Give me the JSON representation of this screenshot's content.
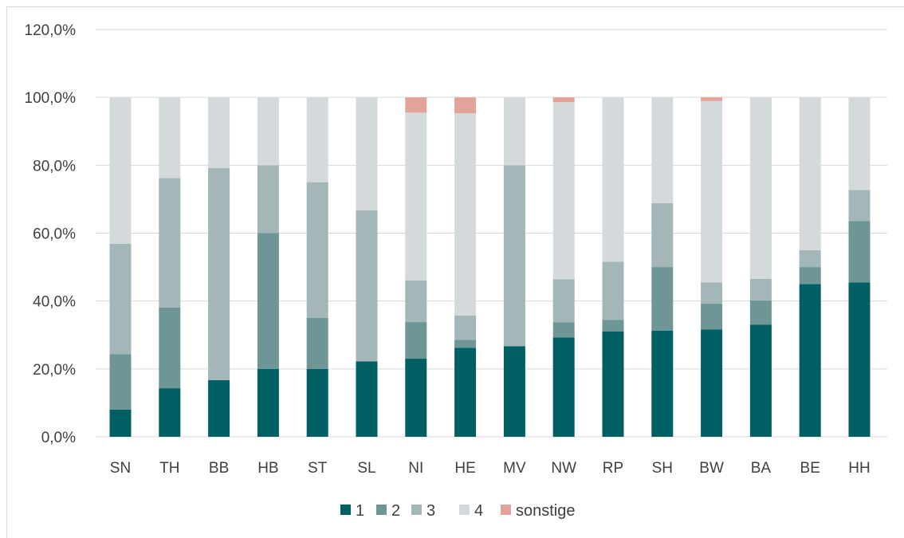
{
  "chart_data": {
    "type": "bar",
    "stacked": true,
    "categories": [
      "SN",
      "TH",
      "BB",
      "HB",
      "ST",
      "SL",
      "NI",
      "HE",
      "MV",
      "NW",
      "RP",
      "SH",
      "BW",
      "BA",
      "BE",
      "HH"
    ],
    "series": [
      {
        "name": "1",
        "color": "#005f62",
        "values": [
          8.0,
          14.3,
          16.7,
          20.0,
          20.0,
          22.2,
          23.0,
          26.2,
          26.7,
          29.3,
          31.0,
          31.3,
          31.6,
          33.0,
          45.0,
          45.5
        ]
      },
      {
        "name": "2",
        "color": "#6e9696",
        "values": [
          16.3,
          23.8,
          0.0,
          40.0,
          15.0,
          0.0,
          10.8,
          2.4,
          0.0,
          4.4,
          3.4,
          18.7,
          7.6,
          7.2,
          5.0,
          18.1
        ]
      },
      {
        "name": "3",
        "color": "#a3b6b8",
        "values": [
          32.6,
          38.1,
          62.5,
          20.0,
          40.0,
          44.5,
          12.3,
          7.1,
          53.3,
          12.7,
          17.2,
          18.8,
          6.3,
          6.3,
          5.0,
          9.1
        ]
      },
      {
        "name": "4",
        "color": "#d4dadc",
        "values": [
          43.1,
          23.8,
          20.8,
          20.0,
          25.0,
          33.3,
          49.4,
          59.6,
          20.0,
          52.2,
          48.4,
          31.2,
          53.4,
          53.5,
          45.0,
          27.3
        ]
      },
      {
        "name": "sonstige",
        "color": "#e2a49a",
        "values": [
          0,
          0,
          0,
          0,
          0,
          0,
          4.5,
          4.7,
          0,
          1.4,
          0,
          0,
          1.1,
          0,
          0,
          0
        ]
      }
    ],
    "y_ticks": [
      "0,0%",
      "20,0%",
      "40,0%",
      "60,0%",
      "80,0%",
      "100,0%",
      "120,0%"
    ],
    "ylim": [
      0,
      120
    ],
    "grid": true,
    "legend_position": "bottom"
  }
}
